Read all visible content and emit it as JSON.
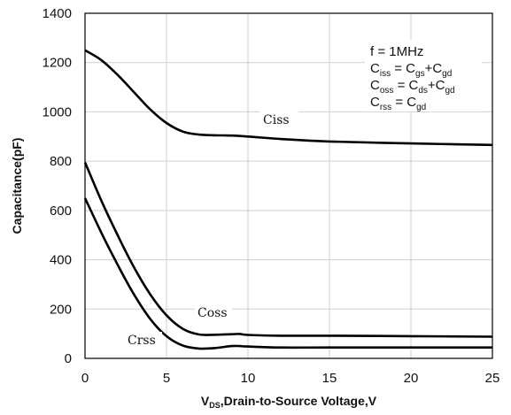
{
  "chart_data": {
    "type": "line",
    "title": "",
    "xlabel_main": "V",
    "xlabel_sub": "DS",
    "xlabel_rest": ",Drain-to-Source Voltage,V",
    "ylabel": "Capacitance(pF)",
    "xlim": [
      0,
      25
    ],
    "ylim": [
      0,
      1400
    ],
    "xticks": [
      0,
      5,
      10,
      15,
      20,
      25
    ],
    "yticks": [
      0,
      200,
      400,
      600,
      800,
      1000,
      1200,
      1400
    ],
    "grid": true,
    "series": [
      {
        "name": "Ciss",
        "x": [
          0,
          1,
          2,
          3,
          4,
          5,
          6,
          7,
          8,
          9,
          10,
          12,
          15,
          20,
          25
        ],
        "y": [
          1250,
          1210,
          1150,
          1080,
          1010,
          955,
          920,
          908,
          905,
          904,
          900,
          890,
          880,
          872,
          866
        ]
      },
      {
        "name": "Coss",
        "x": [
          0,
          1,
          2,
          3,
          4,
          5,
          6,
          7,
          8,
          9,
          9.5,
          10,
          12,
          15,
          20,
          25
        ],
        "y": [
          795,
          640,
          500,
          370,
          260,
          175,
          120,
          97,
          96,
          98,
          99,
          95,
          92,
          92,
          90,
          88
        ],
        "label_x": 7.0,
        "label_y": 210
      },
      {
        "name": "Crss",
        "x": [
          0,
          1,
          2,
          3,
          4,
          5,
          6,
          7,
          8,
          9,
          9.5,
          10,
          12,
          15,
          20,
          25
        ],
        "y": [
          650,
          510,
          380,
          260,
          160,
          90,
          52,
          40,
          42,
          50,
          50,
          48,
          44,
          44,
          44,
          44
        ],
        "label_x": 3.5,
        "label_y": 80
      }
    ],
    "ciss_label_pos": [
      11,
      1000
    ],
    "annotation": {
      "freq": "f = 1MHz",
      "lines": [
        {
          "lhs": "C",
          "lhs_sub": "iss",
          "eq": " = C",
          "a_sub": "gs",
          "plus": "+C",
          "b_sub": "gd"
        },
        {
          "lhs": "C",
          "lhs_sub": "oss",
          "eq": " = C",
          "a_sub": "ds",
          "plus": "+C",
          "b_sub": "gd"
        },
        {
          "lhs": "C",
          "lhs_sub": "rss",
          "eq": " = C",
          "a_sub": "gd",
          "plus": "",
          "b_sub": ""
        }
      ]
    }
  }
}
